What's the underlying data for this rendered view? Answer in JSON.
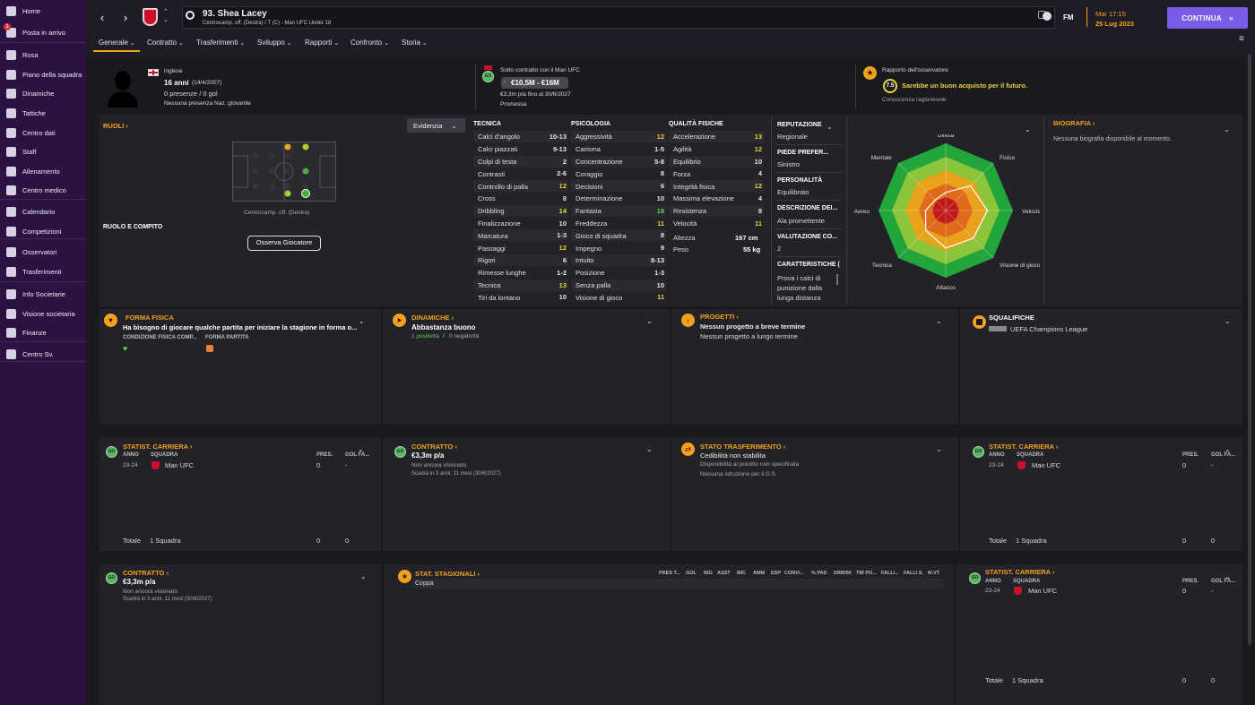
{
  "sidebar": {
    "items": [
      {
        "label": "Home",
        "icon": "home-icon"
      },
      {
        "label": "Posta in arrivo",
        "icon": "inbox-icon",
        "badge": "1"
      },
      {
        "label": "Rosa",
        "icon": "squad-icon"
      },
      {
        "label": "Piano della squadra",
        "icon": "plan-icon"
      },
      {
        "label": "Dinamiche",
        "icon": "dynamics-icon"
      },
      {
        "label": "Tattiche",
        "icon": "tactics-icon"
      },
      {
        "label": "Centro dati",
        "icon": "data-icon"
      },
      {
        "label": "Staff",
        "icon": "staff-icon"
      },
      {
        "label": "Allenamento",
        "icon": "training-icon"
      },
      {
        "label": "Centro medico",
        "icon": "medical-icon"
      },
      {
        "label": "Calendario",
        "icon": "calendar-icon"
      },
      {
        "label": "Competizioni",
        "icon": "trophy-icon"
      },
      {
        "label": "Osservatori",
        "icon": "scout-icon"
      },
      {
        "label": "Trasferimenti",
        "icon": "transfer-icon"
      },
      {
        "label": "Info Societarie",
        "icon": "club-icon"
      },
      {
        "label": "Visione societaria",
        "icon": "vision-icon"
      },
      {
        "label": "Finanze",
        "icon": "finance-icon"
      },
      {
        "label": "Centro Sv.",
        "icon": "dev-icon"
      }
    ]
  },
  "header": {
    "player_title": "93. Shea Lacey",
    "player_sub": "Centrocamp. off. (Destra) / T (C) - Man UFC Under 18",
    "fm": "FM",
    "time": "Mar 17:15",
    "date": "25 Lug 2023",
    "continue": "CONTINUA"
  },
  "tabs": [
    "Generale",
    "Contratto",
    "Trasferimenti",
    "Sviluppo",
    "Rapporti",
    "Confronto",
    "Storia"
  ],
  "profile": {
    "nationality": "inglese",
    "age": "16 anni",
    "dob": "(14/4/2007)",
    "apps": "0 presenze / 0 gol",
    "intl": "Nessuna presenza Naz. giovanile"
  },
  "contract_head": {
    "title": "Sotto contratto con il Man UFC",
    "value": "€10,5M - €16M",
    "wage": "€3,3m p/a fino al 30/6/2027",
    "status": "Promessa"
  },
  "scout_head": {
    "title": "Rapporto dell'osservatore",
    "score": "7.5",
    "text": "Sarebbe un buon acquisto per il futuro.",
    "knowledge": "Conoscenza ragionevole"
  },
  "roles": {
    "title": "RUOLI",
    "button": "Evidenzia",
    "position": "Centrocamp. off. (Destra)",
    "role_title": "RUOLO E COMPITO",
    "watch": "Osserva Giocatore"
  },
  "technical": {
    "title": "TECNICA",
    "rows": [
      [
        "Calci d'angolo",
        "10-13"
      ],
      [
        "Calci piazzati",
        "9-13"
      ],
      [
        "Colpi di testa",
        "2"
      ],
      [
        "Contrasti",
        "2-6"
      ],
      [
        "Controllo di palla",
        "12"
      ],
      [
        "Cross",
        "8"
      ],
      [
        "Dribbling",
        "14"
      ],
      [
        "Finalizzazione",
        "10"
      ],
      [
        "Marcatura",
        "1-3"
      ],
      [
        "Passaggi",
        "12"
      ],
      [
        "Rigori",
        "6"
      ],
      [
        "Rimesse lunghe",
        "1-2"
      ],
      [
        "Tecnica",
        "13"
      ],
      [
        "Tiri da lontano",
        "10"
      ]
    ]
  },
  "mental": {
    "title": "PSICOLOGIA",
    "rows": [
      [
        "Aggressività",
        "12"
      ],
      [
        "Carisma",
        "1-5"
      ],
      [
        "Concentrazione",
        "5-8"
      ],
      [
        "Coraggio",
        "8"
      ],
      [
        "Decisioni",
        "6"
      ],
      [
        "Determinazione",
        "10"
      ],
      [
        "Fantasia",
        "18"
      ],
      [
        "Freddezza",
        "11"
      ],
      [
        "Gioco di squadra",
        "8"
      ],
      [
        "Impegno",
        "9"
      ],
      [
        "Intuito",
        "8-13"
      ],
      [
        "Posizione",
        "1-3"
      ],
      [
        "Senza palla",
        "10"
      ],
      [
        "Visione di gioco",
        "11"
      ]
    ]
  },
  "physical": {
    "title": "QUALITÀ FISICHE",
    "rows": [
      [
        "Accelerazione",
        "13"
      ],
      [
        "Agilità",
        "12"
      ],
      [
        "Equilibrio",
        "10"
      ],
      [
        "Forza",
        "4"
      ],
      [
        "Integrità fisica",
        "12"
      ],
      [
        "Massima elevazione",
        "4"
      ],
      [
        "Resistenza",
        "8"
      ],
      [
        "Velocità",
        "11"
      ]
    ],
    "height_label": "Altezza",
    "height": "167 cm",
    "weight_label": "Peso",
    "weight": "55 kg"
  },
  "info": {
    "rep_t": "REPUTAZIONE",
    "rep": "Regionale",
    "foot_t": "PIEDE PREFER...",
    "foot": "Sinistro",
    "pers_t": "PERSONALITÀ",
    "pers": "Equilibrato",
    "desc_t": "DESCRIZIONE DEI...",
    "desc": "Ala promettente",
    "val_t": "VALUTAZIONE CO...",
    "val": "2",
    "car_t": "CARATTERISTICHE (",
    "car1": "Prova i calci di",
    "car2": "punizione dalla",
    "car3": "lunga distanza"
  },
  "radar": {
    "labels": [
      "Difesa",
      "Fisico",
      "Velocità",
      "Visione di gioco",
      "Attacco",
      "Tecnica",
      "Aereo",
      "Mentale"
    ],
    "values": [
      0.27,
      0.52,
      0.62,
      0.58,
      0.56,
      0.42,
      0.3,
      0.22
    ]
  },
  "bio": {
    "title": "BIOGRAFIA",
    "text": "Nessuna biografia disponibile al momento."
  },
  "form": {
    "title": "FORMA FISICA",
    "text": "Ha bisogno di giocare qualche partita per iniziare la stagione in forma o...",
    "h1": "CONDIZIONE FISICA COMP...",
    "h2": "FORMA PARTITA"
  },
  "dyn": {
    "title": "DINAMICHE",
    "text": "Abbastanza buono",
    "pos": "1 positività",
    "sep": "/",
    "neg": "0 negatività"
  },
  "proj": {
    "title": "PROGETTI",
    "t1": "Nessun progetto a breve termine",
    "t2": "Nessun progetto a lungo termine"
  },
  "susp": {
    "title": "SQUALIFICHE",
    "text": "UEFA Champions League"
  },
  "career1": {
    "title": "STATIST. CARRIERA",
    "h_year": "ANNO",
    "h_team": "SQUADRA",
    "h_apps": "PRES.",
    "h_goals": "GOL FA...",
    "year": "23-24",
    "team": "Man UFC",
    "apps": "0",
    "goals": "-",
    "total": "Totale",
    "total_team": "1 Squadra",
    "t_apps": "0",
    "t_goals": "0"
  },
  "contract2": {
    "title": "CONTRATTO",
    "wage": "€3,3m p/a",
    "l1": "Non ancora visionato",
    "l2": "Scadrà in 3 anni, 11 mesi  (30/6/2027)"
  },
  "transfer": {
    "title": "STATO TRASFERIMENTO",
    "t1": "Cedibilità non stabilita",
    "t2": "Disponibilità al prestito non specificata",
    "t3": "Nessuna istruzione per il D.S."
  },
  "season": {
    "title": "STAT. STAGIONALI",
    "cols": [
      "PRES T...",
      "GOL",
      "RIG",
      "ASST",
      "MIC",
      "AMM",
      "ESP",
      "CONV/...",
      "% PAS",
      "DRB/90",
      "TIR PO...",
      "FALLI...",
      "FALLI S.",
      "M.VT"
    ],
    "row": "Coppa"
  },
  "colors": {
    "accent": "#f3a11c",
    "sidebar": "#2b1242",
    "continue": "#7a5ce6",
    "green": "#5cb85c",
    "yellow": "#e8d33a"
  }
}
